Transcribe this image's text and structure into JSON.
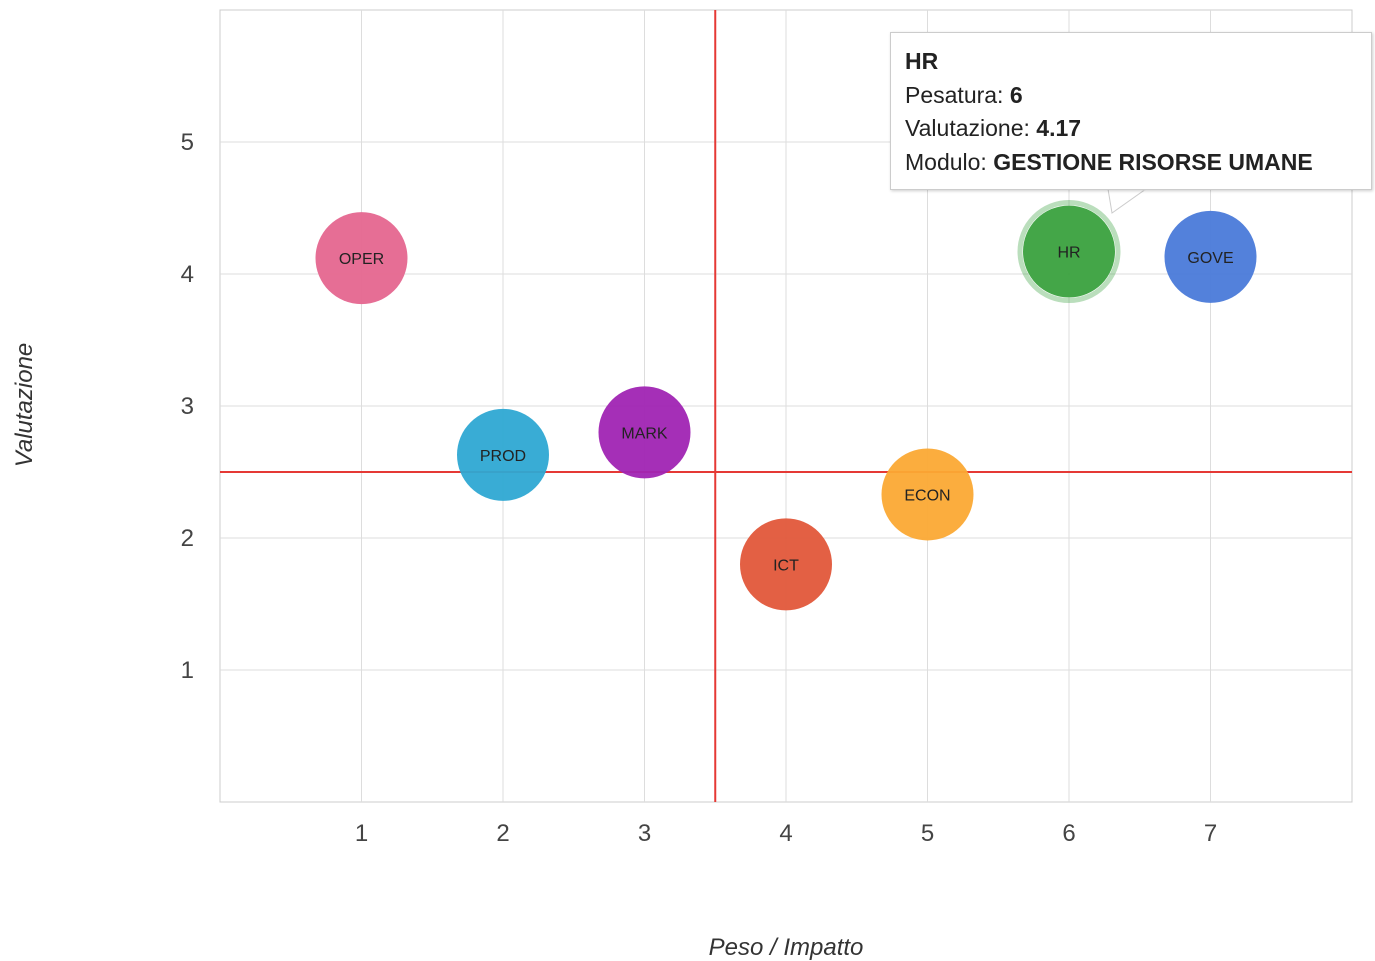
{
  "chart_data": {
    "type": "scatter",
    "xlabel": "Peso / Impatto",
    "ylabel": "Valutazione",
    "xlim": [
      0,
      8
    ],
    "ylim": [
      0,
      6
    ],
    "xticks": [
      "1",
      "2",
      "3",
      "4",
      "5",
      "6",
      "7"
    ],
    "yticks": [
      "1",
      "2",
      "3",
      "4",
      "5"
    ],
    "grid": true,
    "reference_lines": {
      "x": 3.5,
      "y": 2.5,
      "color": "#e53935"
    },
    "points": [
      {
        "label": "OPER",
        "x": 1,
        "y": 4.12,
        "color": "#e5668f"
      },
      {
        "label": "PROD",
        "x": 2,
        "y": 2.63,
        "color": "#2ea8d3"
      },
      {
        "label": "MARK",
        "x": 3,
        "y": 2.8,
        "color": "#a024b3"
      },
      {
        "label": "ICT",
        "x": 4,
        "y": 1.8,
        "color": "#e2573a"
      },
      {
        "label": "ECON",
        "x": 5,
        "y": 2.33,
        "color": "#fba934"
      },
      {
        "label": "HR",
        "x": 6,
        "y": 4.17,
        "color": "#3aa13e"
      },
      {
        "label": "GOVE",
        "x": 7,
        "y": 4.13,
        "color": "#4a7ad9"
      }
    ]
  },
  "tooltip": {
    "title": "HR",
    "pesatura_label": "Pesatura:",
    "pesatura_value": "6",
    "valutazione_label": "Valutazione:",
    "valutazione_value": "4.17",
    "modulo_label": "Modulo:",
    "modulo_value": "GESTIONE RISORSE UMANE"
  }
}
